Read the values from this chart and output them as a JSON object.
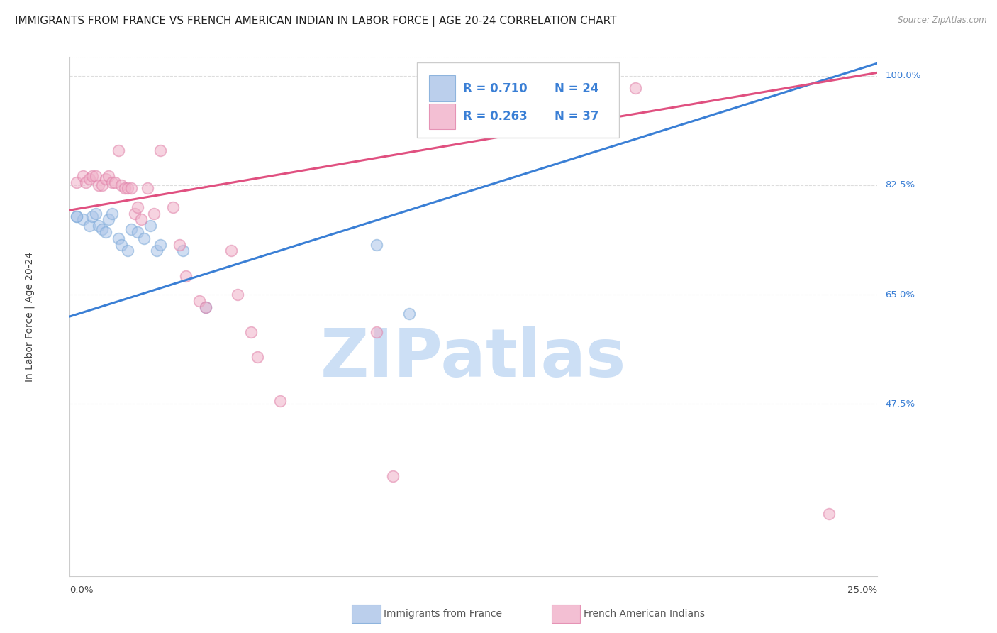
{
  "title": "IMMIGRANTS FROM FRANCE VS FRENCH AMERICAN INDIAN IN LABOR FORCE | AGE 20-24 CORRELATION CHART",
  "source": "Source: ZipAtlas.com",
  "ylabel": "In Labor Force | Age 20-24",
  "ylabel_color": "#444444",
  "ytick_labels": [
    "100.0%",
    "82.5%",
    "65.0%",
    "47.5%"
  ],
  "ytick_values": [
    1.0,
    0.825,
    0.65,
    0.475
  ],
  "xlim": [
    0.0,
    0.25
  ],
  "ylim": [
    0.2,
    1.03
  ],
  "legend_R1": "0.710",
  "legend_N1": "24",
  "legend_R2": "0.263",
  "legend_N2": "37",
  "blue_color": "#aac4e8",
  "pink_color": "#f0b0c8",
  "blue_edge_color": "#7aa8d8",
  "pink_edge_color": "#e080a8",
  "blue_line_color": "#3a7fd5",
  "pink_line_color": "#e05080",
  "legend_text_color": "#3a7fd5",
  "blue_scatter_x": [
    0.002,
    0.004,
    0.006,
    0.007,
    0.008,
    0.009,
    0.01,
    0.011,
    0.012,
    0.013,
    0.015,
    0.016,
    0.018,
    0.019,
    0.021,
    0.023,
    0.025,
    0.027,
    0.028,
    0.035,
    0.042,
    0.095,
    0.105,
    0.002
  ],
  "blue_scatter_y": [
    0.775,
    0.77,
    0.76,
    0.775,
    0.78,
    0.76,
    0.755,
    0.75,
    0.77,
    0.78,
    0.74,
    0.73,
    0.72,
    0.755,
    0.75,
    0.74,
    0.76,
    0.72,
    0.73,
    0.72,
    0.63,
    0.73,
    0.62,
    0.775
  ],
  "pink_scatter_x": [
    0.002,
    0.004,
    0.005,
    0.006,
    0.007,
    0.008,
    0.009,
    0.01,
    0.011,
    0.012,
    0.013,
    0.014,
    0.015,
    0.016,
    0.017,
    0.018,
    0.019,
    0.02,
    0.021,
    0.022,
    0.024,
    0.026,
    0.028,
    0.032,
    0.034,
    0.036,
    0.04,
    0.042,
    0.05,
    0.052,
    0.056,
    0.058,
    0.065,
    0.095,
    0.1,
    0.175,
    0.235
  ],
  "pink_scatter_y": [
    0.83,
    0.84,
    0.83,
    0.835,
    0.84,
    0.84,
    0.825,
    0.825,
    0.835,
    0.84,
    0.83,
    0.83,
    0.88,
    0.825,
    0.82,
    0.82,
    0.82,
    0.78,
    0.79,
    0.77,
    0.82,
    0.78,
    0.88,
    0.79,
    0.73,
    0.68,
    0.64,
    0.63,
    0.72,
    0.65,
    0.59,
    0.55,
    0.48,
    0.59,
    0.36,
    0.98,
    0.3
  ],
  "blue_trendline_x": [
    0.0,
    0.25
  ],
  "blue_trendline_y": [
    0.615,
    1.02
  ],
  "pink_trendline_x": [
    0.0,
    0.25
  ],
  "pink_trendline_y": [
    0.785,
    1.005
  ],
  "watermark_text": "ZIPatlas",
  "watermark_color": "#ccdff5",
  "background_color": "#ffffff",
  "grid_color": "#dddddd",
  "title_fontsize": 11,
  "tick_fontsize": 9.5,
  "marker_size": 130,
  "marker_alpha": 0.55,
  "marker_linewidth": 1.2
}
